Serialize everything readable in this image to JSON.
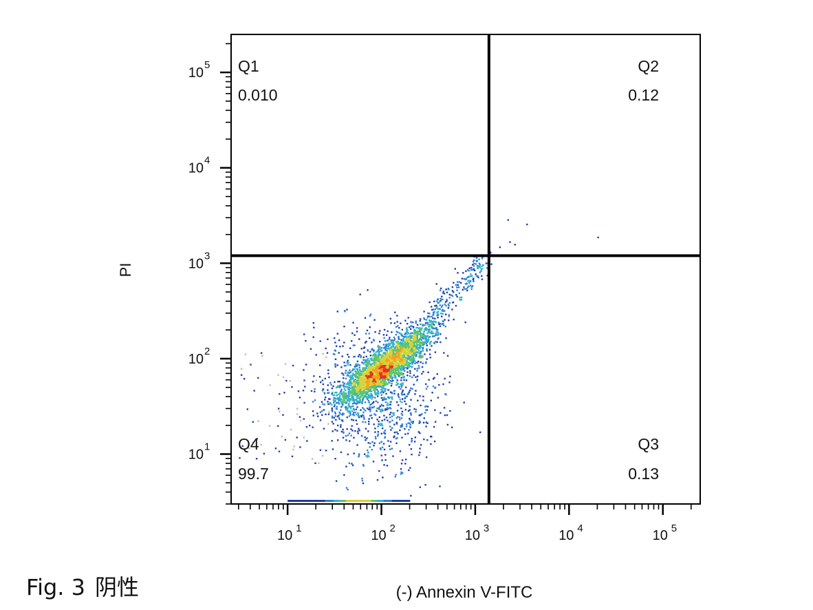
{
  "chart_data": {
    "type": "scatter",
    "subtype": "flow-cytometry-density-dot-plot",
    "xlabel": "(-) Annexin V-FITC",
    "ylabel": "PI",
    "x_scale": "log",
    "y_scale": "log",
    "xlim": [
      2.5,
      250000
    ],
    "ylim": [
      3,
      250000
    ],
    "x_ticks": [
      {
        "value": 10,
        "base": "10",
        "exp": "1"
      },
      {
        "value": 100,
        "base": "10",
        "exp": "2"
      },
      {
        "value": 1000,
        "base": "10",
        "exp": "3"
      },
      {
        "value": 10000,
        "base": "10",
        "exp": "4"
      },
      {
        "value": 100000,
        "base": "10",
        "exp": "5"
      }
    ],
    "y_ticks": [
      {
        "value": 10,
        "base": "10",
        "exp": "1"
      },
      {
        "value": 100,
        "base": "10",
        "exp": "2"
      },
      {
        "value": 1000,
        "base": "10",
        "exp": "3"
      },
      {
        "value": 10000,
        "base": "10",
        "exp": "4"
      },
      {
        "value": 100000,
        "base": "10",
        "exp": "5"
      }
    ],
    "gates": {
      "x_threshold": 1400,
      "y_threshold": 1200
    },
    "quadrants": [
      {
        "name": "Q1",
        "value": "0.010",
        "position": "top-left"
      },
      {
        "name": "Q2",
        "value": "0.12",
        "position": "top-right"
      },
      {
        "name": "Q3",
        "value": "0.13",
        "position": "bottom-right"
      },
      {
        "name": "Q4",
        "value": "99.7",
        "position": "bottom-left"
      }
    ],
    "population": {
      "center": [
        100,
        80
      ],
      "core_spread_decades": [
        0.22,
        0.2
      ],
      "extends_toward": [
        1300,
        1200
      ],
      "floor_band_x_range": [
        10,
        200
      ],
      "outliers": [
        [
          2200,
          2900
        ],
        [
          3500,
          2600
        ],
        [
          20000,
          1900
        ],
        [
          2300,
          1700
        ],
        [
          2600,
          1600
        ],
        [
          1800,
          1500
        ]
      ]
    },
    "density_colors": [
      "#1f3faa",
      "#2f7fd6",
      "#35b3c6",
      "#5fc46a",
      "#d6d33a",
      "#f4a21e",
      "#e8321e"
    ]
  },
  "caption": {
    "prefix": "Fig. 3",
    "text": "阴性"
  }
}
